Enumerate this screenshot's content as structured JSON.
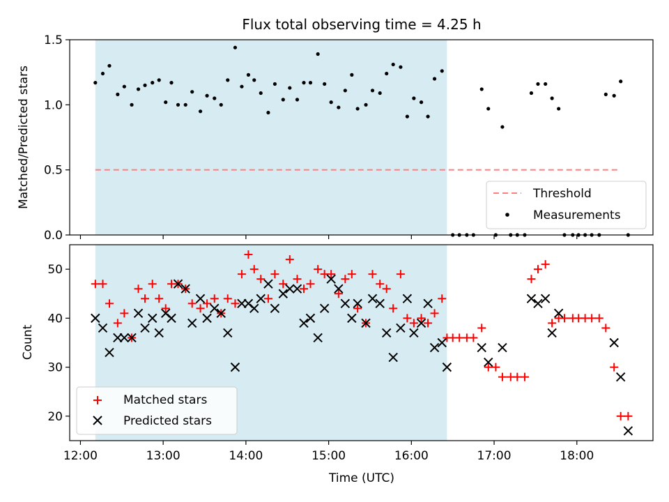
{
  "chart_data": [
    {
      "type": "scatter",
      "title": "Flux total observing time = 4.25 h",
      "xlabel": "",
      "ylabel": "Matched/Predicted stars",
      "xlim": [
        11.87,
        18.92
      ],
      "ylim": [
        0.0,
        1.5
      ],
      "yticks": [
        0.0,
        0.5,
        1.0,
        1.5
      ],
      "ytick_labels": [
        "0.0",
        "0.5",
        "1.0",
        "1.5"
      ],
      "shaded_region": {
        "x_start": 12.18,
        "x_end": 16.43,
        "color": "#add8e6"
      },
      "threshold": {
        "name": "Threshold",
        "value": 0.5,
        "x_start": 12.18,
        "x_end": 18.53,
        "color": "#ff7f7f"
      },
      "series": [
        {
          "name": "Measurements",
          "color": "#000000",
          "marker": "dot",
          "x": [
            12.18,
            12.27,
            12.35,
            12.45,
            12.53,
            12.62,
            12.7,
            12.78,
            12.87,
            12.95,
            13.03,
            13.1,
            13.18,
            13.27,
            13.35,
            13.45,
            13.53,
            13.62,
            13.7,
            13.78,
            13.87,
            13.95,
            14.03,
            14.1,
            14.18,
            14.27,
            14.35,
            14.45,
            14.53,
            14.62,
            14.7,
            14.78,
            14.87,
            14.95,
            15.03,
            15.12,
            15.2,
            15.28,
            15.35,
            15.45,
            15.53,
            15.62,
            15.7,
            15.78,
            15.87,
            15.95,
            16.03,
            16.12,
            16.2,
            16.28,
            16.37,
            16.5,
            16.58,
            16.67,
            16.75,
            16.85,
            16.93,
            17.02,
            17.1,
            17.2,
            17.28,
            17.37,
            17.45,
            17.53,
            17.62,
            17.7,
            17.78,
            17.85,
            17.95,
            18.02,
            18.1,
            18.18,
            18.27,
            18.35,
            18.45,
            18.53,
            18.62
          ],
          "y": [
            1.17,
            1.24,
            1.3,
            1.08,
            1.14,
            1.0,
            1.12,
            1.15,
            1.17,
            1.19,
            1.02,
            1.17,
            1.0,
            1.0,
            1.1,
            0.95,
            1.07,
            1.05,
            1.0,
            1.19,
            1.44,
            1.14,
            1.23,
            1.19,
            1.09,
            0.94,
            1.16,
            1.04,
            1.13,
            1.04,
            1.17,
            1.17,
            1.39,
            1.16,
            1.02,
            0.98,
            1.11,
            1.23,
            0.97,
            1.0,
            1.11,
            1.09,
            1.24,
            1.31,
            1.29,
            0.91,
            1.05,
            1.02,
            0.91,
            1.2,
            1.26,
            0.0,
            0.0,
            0.0,
            0.0,
            1.12,
            0.97,
            0.0,
            0.83,
            0.0,
            0.0,
            0.0,
            1.09,
            1.16,
            1.16,
            1.05,
            0.97,
            0.0,
            0.0,
            0.0,
            0.0,
            0.0,
            0.0,
            1.08,
            1.07,
            1.18,
            0.0
          ]
        }
      ],
      "legend": {
        "location": "bottom-right",
        "entries": [
          "Threshold",
          "Measurements"
        ]
      }
    },
    {
      "type": "scatter",
      "title": "",
      "xlabel": "Time (UTC)",
      "ylabel": "Count",
      "xlim": [
        11.87,
        18.92
      ],
      "ylim": [
        15.0,
        55.0
      ],
      "yticks": [
        20,
        30,
        40,
        50
      ],
      "ytick_labels": [
        "20",
        "30",
        "40",
        "50"
      ],
      "xticks": [
        12,
        13,
        14,
        15,
        16,
        17,
        18
      ],
      "xtick_labels": [
        "12:00",
        "13:00",
        "14:00",
        "15:00",
        "16:00",
        "17:00",
        "18:00"
      ],
      "shaded_region": {
        "x_start": 12.18,
        "x_end": 16.43,
        "color": "#add8e6"
      },
      "series": [
        {
          "name": "Matched stars",
          "color": "#ff0000",
          "marker": "plus",
          "x": [
            12.18,
            12.27,
            12.35,
            12.45,
            12.53,
            12.62,
            12.7,
            12.78,
            12.87,
            12.95,
            13.03,
            13.1,
            13.18,
            13.27,
            13.35,
            13.45,
            13.53,
            13.62,
            13.7,
            13.78,
            13.87,
            13.95,
            14.03,
            14.1,
            14.18,
            14.27,
            14.35,
            14.45,
            14.53,
            14.62,
            14.7,
            14.78,
            14.87,
            14.95,
            15.03,
            15.12,
            15.2,
            15.28,
            15.35,
            15.45,
            15.53,
            15.62,
            15.7,
            15.78,
            15.87,
            15.95,
            16.03,
            16.12,
            16.2,
            16.28,
            16.37,
            16.43,
            16.5,
            16.58,
            16.67,
            16.75,
            16.85,
            16.93,
            17.02,
            17.1,
            17.2,
            17.28,
            17.37,
            17.45,
            17.53,
            17.62,
            17.7,
            17.78,
            17.85,
            17.95,
            18.02,
            18.1,
            18.18,
            18.27,
            18.35,
            18.45,
            18.53,
            18.62
          ],
          "y": [
            47,
            47,
            43,
            39,
            41,
            36,
            46,
            44,
            47,
            44,
            42,
            47,
            47,
            46,
            43,
            42,
            43,
            44,
            41,
            44,
            43,
            49,
            53,
            50,
            48,
            44,
            49,
            47,
            52,
            48,
            46,
            47,
            50,
            49,
            49,
            45,
            48,
            49,
            42,
            39,
            49,
            47,
            46,
            42,
            49,
            40,
            39,
            40,
            39,
            41,
            44,
            36,
            36,
            36,
            36,
            36,
            38,
            30,
            30,
            28,
            28,
            28,
            28,
            48,
            50,
            51,
            39,
            40,
            40,
            40,
            40,
            40,
            40,
            40,
            38,
            30,
            20,
            20
          ]
        },
        {
          "name": "Predicted stars",
          "color": "#000000",
          "marker": "x",
          "x": [
            12.18,
            12.27,
            12.35,
            12.45,
            12.53,
            12.62,
            12.7,
            12.78,
            12.87,
            12.95,
            13.03,
            13.1,
            13.18,
            13.27,
            13.35,
            13.45,
            13.53,
            13.62,
            13.7,
            13.78,
            13.87,
            13.95,
            14.03,
            14.1,
            14.18,
            14.27,
            14.35,
            14.45,
            14.53,
            14.62,
            14.7,
            14.78,
            14.87,
            14.95,
            15.03,
            15.12,
            15.2,
            15.28,
            15.35,
            15.45,
            15.53,
            15.62,
            15.7,
            15.78,
            15.87,
            15.95,
            16.03,
            16.12,
            16.2,
            16.28,
            16.37,
            16.43,
            16.85,
            16.93,
            17.1,
            17.45,
            17.53,
            17.62,
            17.7,
            17.78,
            18.45,
            18.53,
            18.62
          ],
          "y": [
            40,
            38,
            33,
            36,
            36,
            36,
            41,
            38,
            40,
            37,
            41,
            40,
            47,
            46,
            39,
            44,
            40,
            42,
            41,
            37,
            30,
            43,
            43,
            42,
            44,
            47,
            42,
            45,
            46,
            46,
            39,
            40,
            36,
            42,
            48,
            46,
            43,
            40,
            43,
            39,
            44,
            43,
            37,
            32,
            38,
            44,
            37,
            39,
            43,
            34,
            35,
            30,
            34,
            31,
            34,
            44,
            43,
            44,
            37,
            41,
            35,
            28,
            17
          ]
        }
      ],
      "legend": {
        "location": "bottom-left",
        "entries": [
          "Matched stars",
          "Predicted stars"
        ]
      }
    }
  ]
}
